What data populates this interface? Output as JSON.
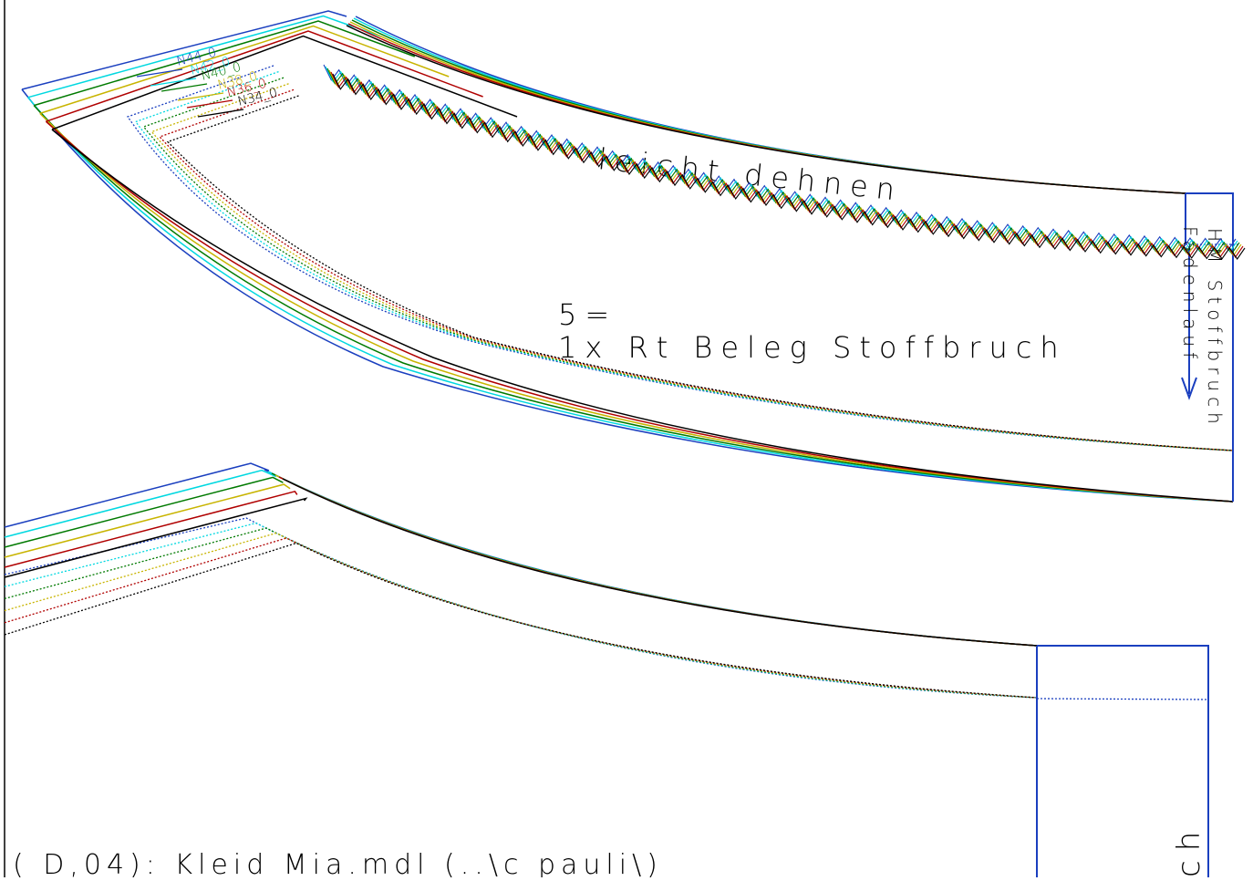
{
  "size_labels": [
    "N44_0",
    "N42_0",
    "N40_0",
    "N38_0",
    "N36_0",
    "N34_0"
  ],
  "piece_top": {
    "instruction": "leicht dehnen",
    "number": "5=",
    "description": "1x Rt Beleg Stoffbruch",
    "fold_label": "HM Stoffbruch",
    "grain_label": "Fadenlauf"
  },
  "piece_bottom": {
    "fold_label_partial": "ch"
  },
  "footer": "( D,04): Kleid Mia.mdl (..\\c pauli\\)"
}
